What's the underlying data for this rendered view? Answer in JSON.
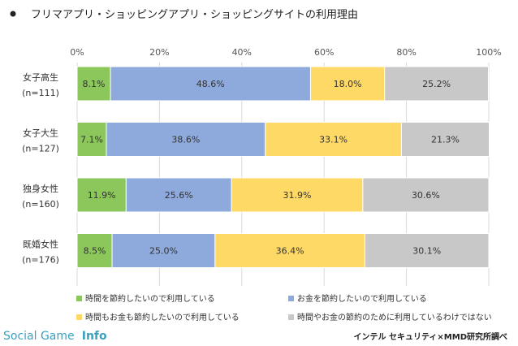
{
  "chart_data": {
    "type": "bar",
    "orientation": "horizontal",
    "stacked": true,
    "title": "フリマアプリ・ショッピングアプリ・ショッピングサイトの利用理由",
    "categories": [
      {
        "name": "女子高生",
        "n": "(n=111)"
      },
      {
        "name": "女子大生",
        "n": "(n=127)"
      },
      {
        "name": "独身女性",
        "n": "(n=160)"
      },
      {
        "name": "既婚女性",
        "n": "(n=176)"
      }
    ],
    "xlim": [
      0,
      100
    ],
    "xticks": [
      "0%",
      "20%",
      "40%",
      "60%",
      "80%",
      "100%"
    ],
    "grid": true,
    "legend_position": "bottom",
    "series": [
      {
        "name": "時間を節約したいので利用している",
        "color": "#8bc75a",
        "values": [
          8.1,
          7.1,
          11.9,
          8.5
        ],
        "labels": [
          "8.1%",
          "7.1%",
          "11.9%",
          "8.5%"
        ]
      },
      {
        "name": "お金を節約したいので利用している",
        "color": "#8eaadc",
        "values": [
          48.6,
          38.6,
          25.6,
          25.0
        ],
        "labels": [
          "48.6%",
          "38.6%",
          "25.6%",
          "25.0%"
        ]
      },
      {
        "name": "時間もお金も節約したいので利用している",
        "color": "#ffd966",
        "values": [
          18.0,
          33.1,
          31.9,
          36.4
        ],
        "labels": [
          "18.0%",
          "33.1%",
          "31.9%",
          "36.4%"
        ]
      },
      {
        "name": "時間やお金の節約のために利用しているわけではない",
        "color": "#c8c8c8",
        "values": [
          25.2,
          21.3,
          30.6,
          30.1
        ],
        "labels": [
          "25.2%",
          "21.3%",
          "30.6%",
          "30.1%"
        ]
      }
    ]
  },
  "footer": {
    "brand_social": "Social Game",
    "brand_info": "Info",
    "credit": "インテル セキュリティ×MMD研究所調べ"
  }
}
